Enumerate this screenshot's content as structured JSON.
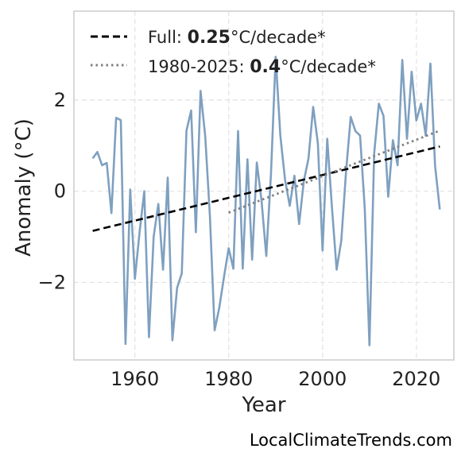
{
  "chart_data": {
    "type": "line",
    "xlabel": "Year",
    "ylabel": "Anomaly (°C)",
    "xlim": [
      1947,
      2028
    ],
    "ylim": [
      -3.7,
      3.95
    ],
    "xticks": [
      1960,
      1980,
      2000,
      2020
    ],
    "yticks": [
      -2,
      0,
      2
    ],
    "ytick_labels": [
      "−2",
      "0",
      "2"
    ],
    "grid": true,
    "legend_position": "top-left",
    "series": [
      {
        "style": "solid",
        "color": "#7fa0c0",
        "x": [
          1951,
          1952,
          1953,
          1954,
          1955,
          1956,
          1957,
          1958,
          1959,
          1960,
          1961,
          1962,
          1963,
          1964,
          1965,
          1966,
          1967,
          1968,
          1969,
          1970,
          1971,
          1972,
          1973,
          1974,
          1975,
          1976,
          1977,
          1978,
          1979,
          1980,
          1981,
          1982,
          1983,
          1984,
          1985,
          1986,
          1987,
          1988,
          1989,
          1990,
          1991,
          1992,
          1993,
          1994,
          1995,
          1996,
          1997,
          1998,
          1999,
          2000,
          2001,
          2002,
          2003,
          2004,
          2005,
          2006,
          2007,
          2008,
          2009,
          2010,
          2011,
          2012,
          2013,
          2014,
          2015,
          2016,
          2017,
          2018,
          2019,
          2020,
          2021,
          2022,
          2023,
          2024,
          2025
        ],
        "y": [
          0.72,
          0.86,
          0.57,
          0.62,
          -0.48,
          1.61,
          1.56,
          -3.35,
          0.04,
          -1.92,
          -0.9,
          0.0,
          -3.2,
          -1.0,
          -0.28,
          -1.72,
          0.3,
          -3.27,
          -2.12,
          -1.8,
          1.33,
          1.77,
          -0.9,
          2.2,
          1.2,
          -0.55,
          -3.05,
          -2.55,
          -1.88,
          -1.25,
          -1.7,
          1.32,
          -1.7,
          0.7,
          -1.5,
          0.63,
          -0.2,
          -1.42,
          0.38,
          2.95,
          1.22,
          0.25,
          -0.32,
          0.34,
          -0.72,
          0.22,
          0.72,
          1.85,
          1.05,
          -1.3,
          1.15,
          -0.35,
          -1.72,
          -1.08,
          0.42,
          1.63,
          1.32,
          1.22,
          -0.38,
          -3.38,
          0.82,
          1.92,
          1.65,
          -0.12,
          1.12,
          0.57,
          2.88,
          1.15,
          2.62,
          1.55,
          1.92,
          1.22,
          2.8,
          0.55,
          -0.4
        ]
      },
      {
        "name_parts": [
          "Full: ",
          "0.25",
          "°C/decade*"
        ],
        "style": "dashed",
        "color": "#000000",
        "x": [
          1951,
          2025
        ],
        "y": [
          -0.87,
          0.98
        ]
      },
      {
        "name_parts": [
          "1980-2025: ",
          "0.4",
          "°C/decade*"
        ],
        "style": "dotted",
        "color": "#808080",
        "x": [
          1980,
          2025
        ],
        "y": [
          -0.47,
          1.33
        ]
      }
    ]
  },
  "credit": "LocalClimateTrends.com"
}
